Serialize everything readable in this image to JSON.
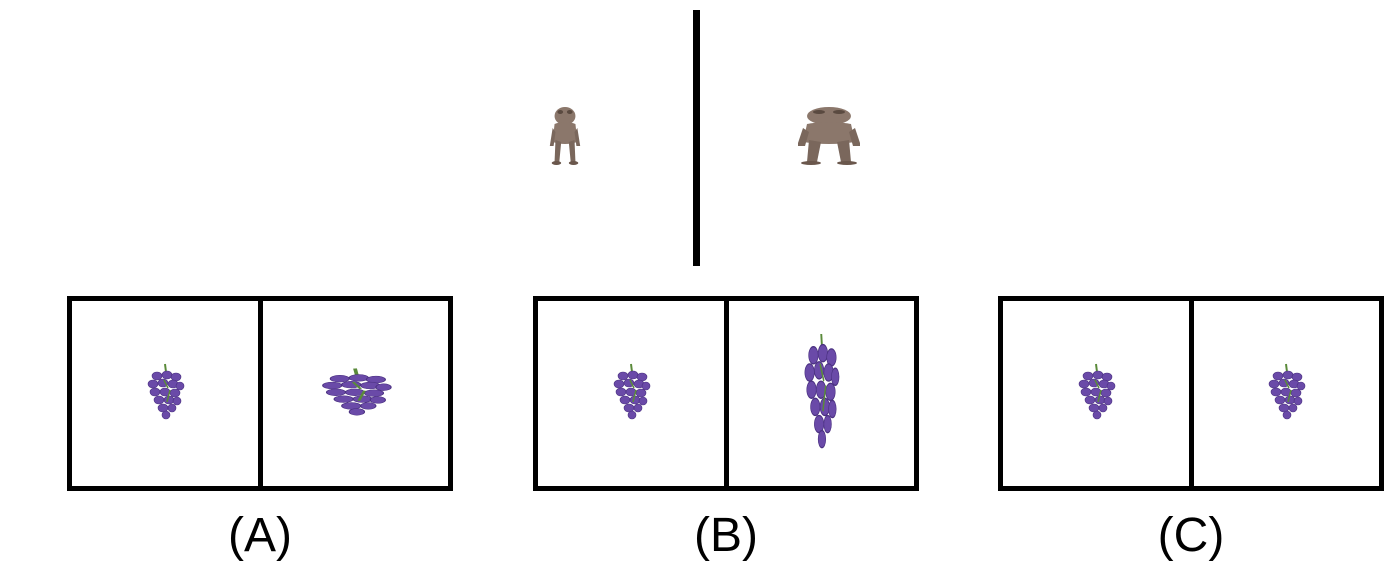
{
  "reference": {
    "left_figure": "small-creature-icon",
    "right_figure": "large-creature-icon",
    "creature_color": "#8b776b"
  },
  "options": [
    {
      "label": "(A)",
      "left": "grape-bunch-icon",
      "right": "grape-bunch-wide-icon"
    },
    {
      "label": "(B)",
      "left": "grape-bunch-icon",
      "right": "grape-bunch-tall-icon"
    },
    {
      "label": "(C)",
      "left": "grape-bunch-icon",
      "right": "grape-bunch-icon"
    }
  ],
  "grape_color": "#6a4aa8",
  "stem_color": "#5a8a3a"
}
